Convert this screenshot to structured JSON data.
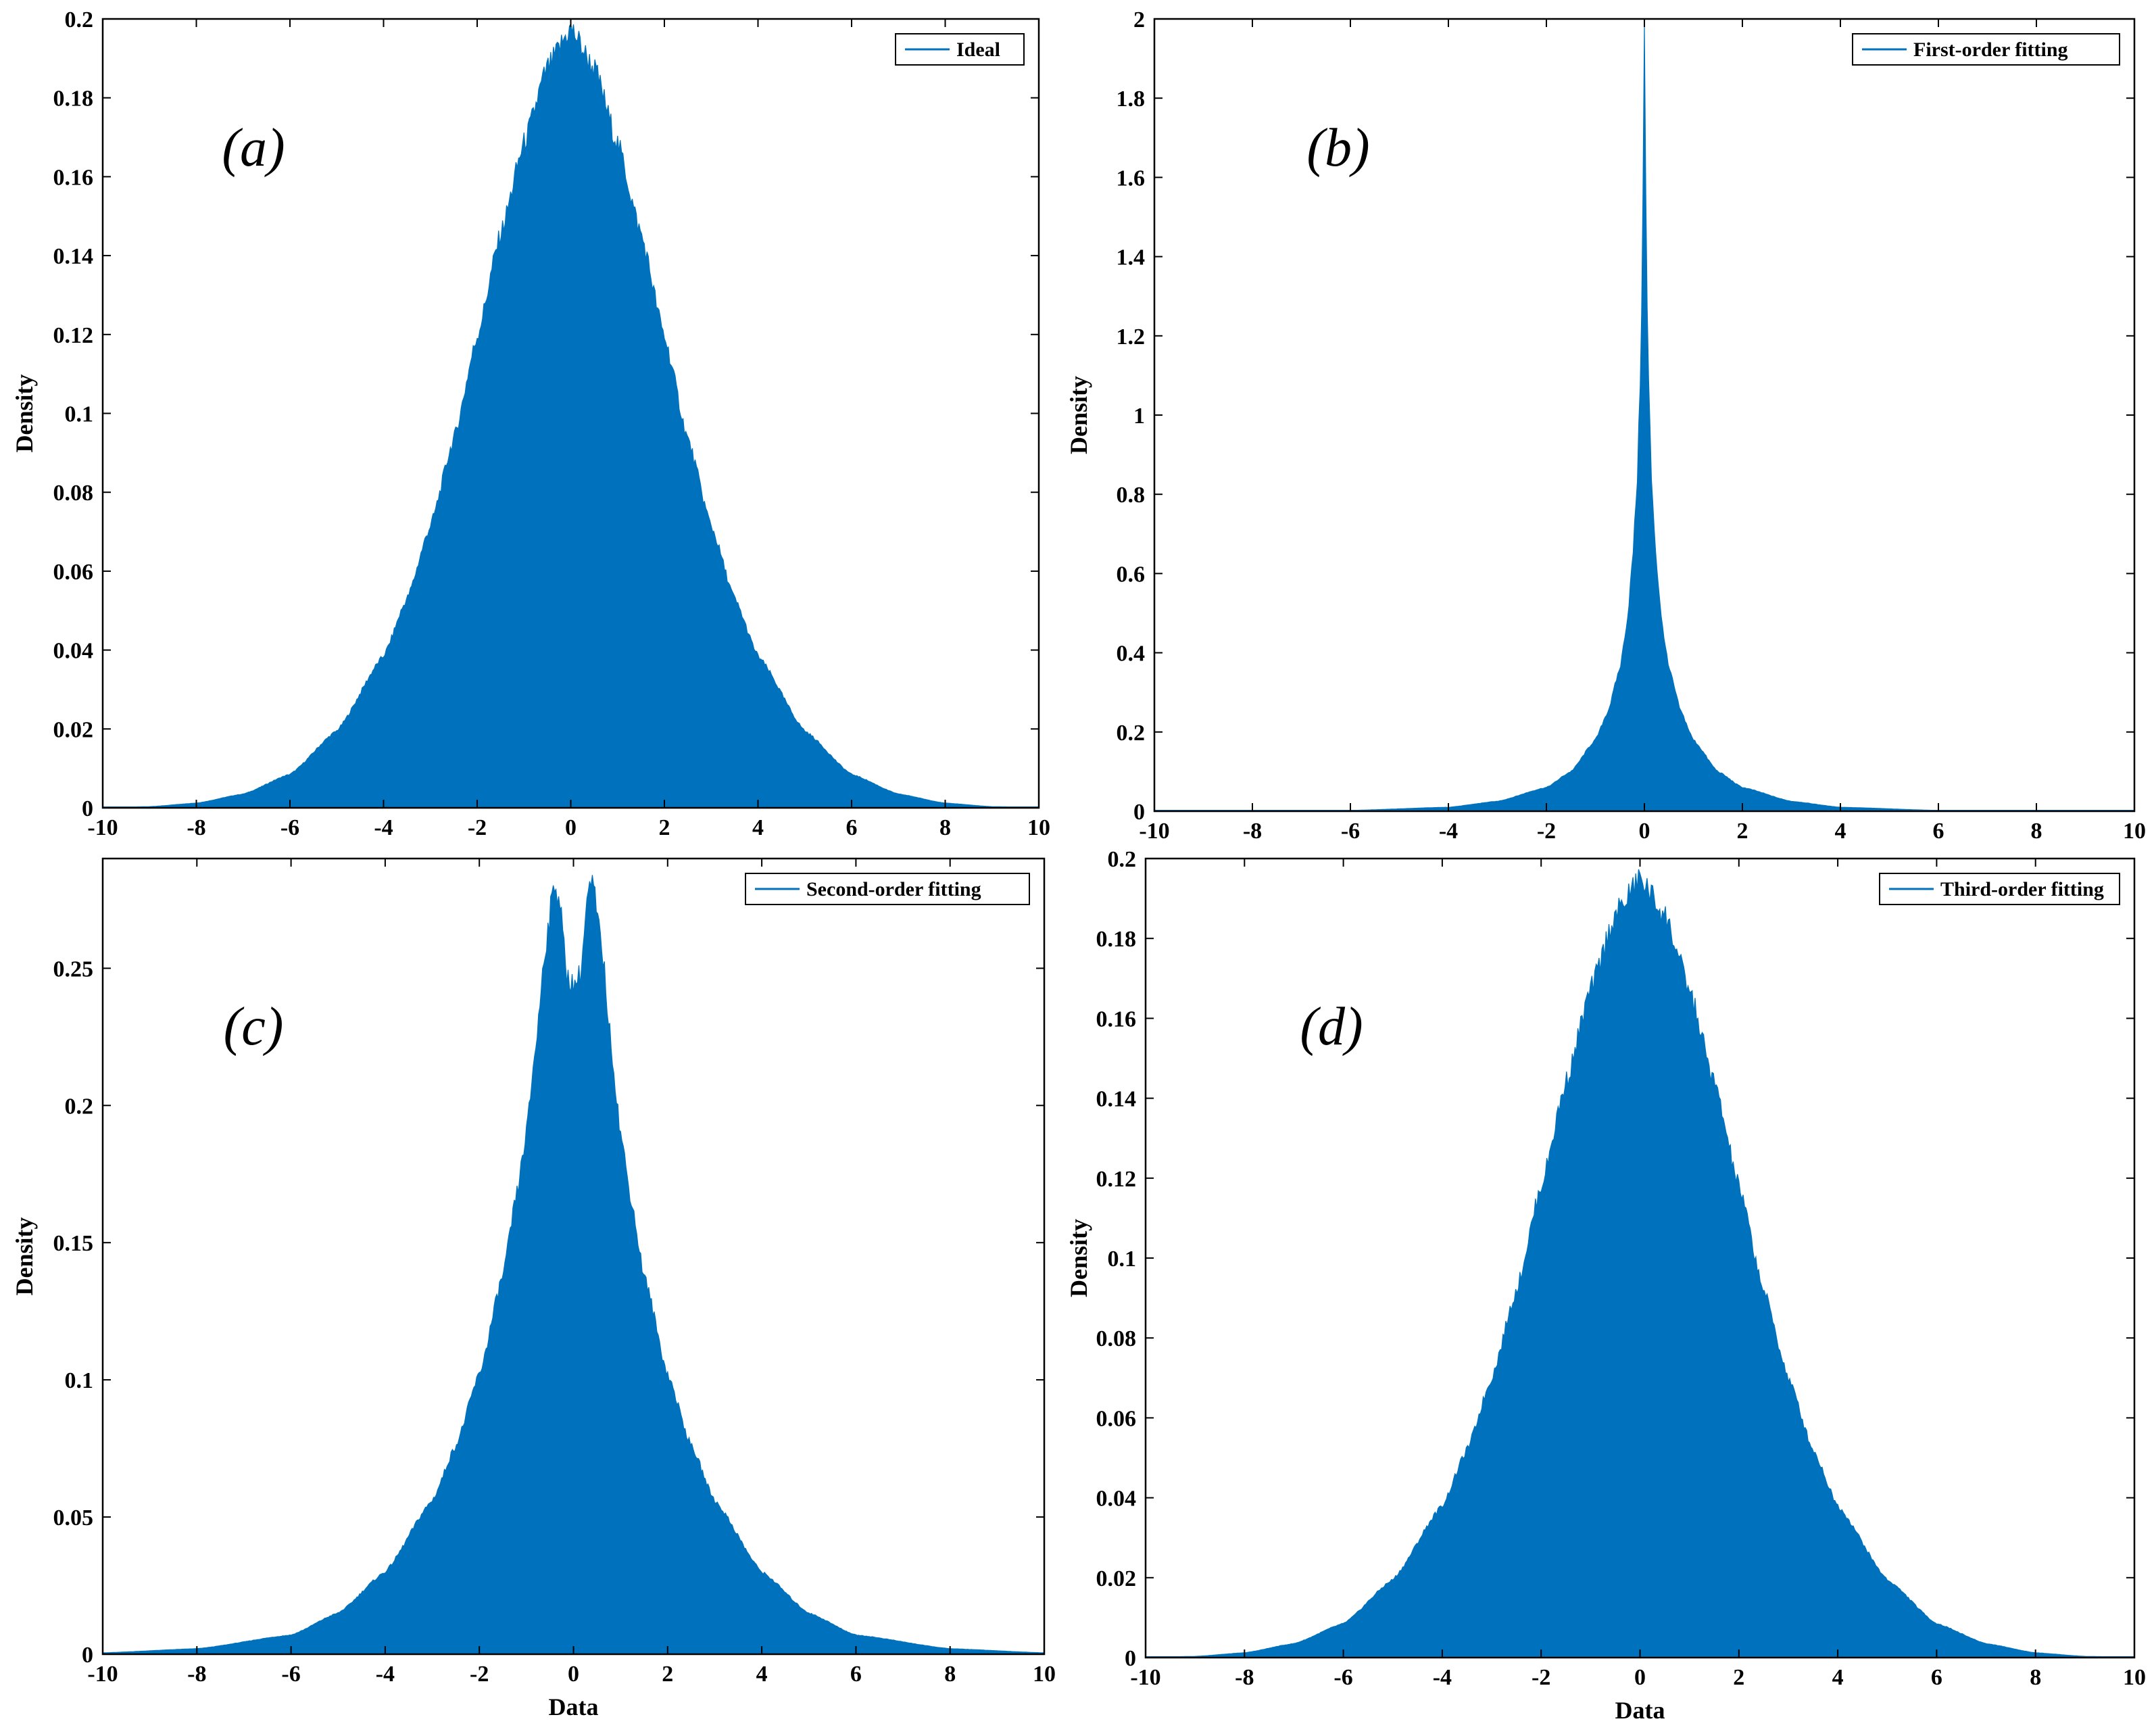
{
  "colors": {
    "series": "#0072BD",
    "axes": "#000000",
    "background": "#ffffff"
  },
  "chart_data": [
    {
      "type": "area",
      "panel_tag": "(a)",
      "title": "",
      "xlabel": "",
      "ylabel": "Density",
      "xlim": [
        -10,
        10
      ],
      "ylim": [
        0,
        0.2
      ],
      "xticks": [
        "-10",
        "-8",
        "-6",
        "-4",
        "-2",
        "0",
        "2",
        "4",
        "6",
        "8",
        "10"
      ],
      "yticks": [
        "0",
        "0.02",
        "0.04",
        "0.06",
        "0.08",
        "0.1",
        "0.12",
        "0.14",
        "0.16",
        "0.18",
        "0.2"
      ],
      "legend": {
        "position": "top-right",
        "entries": [
          "Ideal"
        ]
      },
      "series": [
        {
          "name": "Ideal",
          "x": [
            -10,
            -9,
            -8,
            -7,
            -6,
            -5,
            -4,
            -3.5,
            -3,
            -2.5,
            -2,
            -1.5,
            -1,
            -0.5,
            0,
            0.5,
            1,
            1.5,
            2,
            2.5,
            3,
            3.5,
            4,
            5,
            6,
            7,
            8,
            9,
            10
          ],
          "y": [
            0.0001,
            0.0003,
            0.0012,
            0.0035,
            0.0085,
            0.0195,
            0.0385,
            0.053,
            0.0715,
            0.0935,
            0.1195,
            0.1455,
            0.1685,
            0.1875,
            0.1975,
            0.1875,
            0.1685,
            0.1455,
            0.1195,
            0.0935,
            0.0715,
            0.053,
            0.0385,
            0.0195,
            0.0085,
            0.0035,
            0.0012,
            0.0003,
            0.0001
          ]
        }
      ]
    },
    {
      "type": "area",
      "panel_tag": "(b)",
      "title": "",
      "xlabel": "",
      "ylabel": "Density",
      "xlim": [
        -10,
        10
      ],
      "ylim": [
        0,
        2
      ],
      "xticks": [
        "-10",
        "-8",
        "-6",
        "-4",
        "-2",
        "0",
        "2",
        "4",
        "6",
        "8",
        "10"
      ],
      "yticks": [
        "0",
        "0.2",
        "0.4",
        "0.6",
        "0.8",
        "1",
        "1.2",
        "1.4",
        "1.6",
        "1.8",
        "2"
      ],
      "legend": {
        "position": "top-right",
        "entries": [
          "First-order fitting"
        ]
      },
      "series": [
        {
          "name": "First-order fitting",
          "x": [
            -10,
            -6,
            -4,
            -3,
            -2,
            -1.5,
            -1,
            -0.75,
            -0.5,
            -0.35,
            -0.25,
            -0.15,
            -0.08,
            -0.04,
            0,
            0.04,
            0.08,
            0.15,
            0.25,
            0.35,
            0.5,
            0.75,
            1,
            1.5,
            2,
            3,
            4,
            6,
            10
          ],
          "y": [
            0.0005,
            0.002,
            0.01,
            0.025,
            0.06,
            0.1,
            0.18,
            0.25,
            0.36,
            0.48,
            0.62,
            0.82,
            1.1,
            1.4,
            1.98,
            1.4,
            1.1,
            0.82,
            0.62,
            0.48,
            0.36,
            0.25,
            0.18,
            0.1,
            0.06,
            0.025,
            0.01,
            0.002,
            0.0005
          ]
        }
      ]
    },
    {
      "type": "area",
      "panel_tag": "(c)",
      "title": "",
      "xlabel": "Data",
      "ylabel": "Density",
      "xlim": [
        -10,
        10
      ],
      "ylim": [
        0,
        0.29
      ],
      "xticks": [
        "-10",
        "-8",
        "-6",
        "-4",
        "-2",
        "0",
        "2",
        "4",
        "6",
        "8",
        "10"
      ],
      "yticks": [
        "0",
        "0.05",
        "0.1",
        "0.15",
        "0.2",
        "0.25"
      ],
      "legend": {
        "position": "top-right",
        "entries": [
          "Second-order fitting"
        ]
      },
      "series": [
        {
          "name": "Second-order fitting",
          "x": [
            -10,
            -8,
            -6,
            -5,
            -4,
            -3,
            -2.5,
            -2,
            -1.5,
            -1.2,
            -1,
            -0.8,
            -0.6,
            -0.4,
            -0.3,
            -0.15,
            0,
            0.15,
            0.3,
            0.4,
            0.6,
            0.8,
            1,
            1.2,
            1.5,
            2,
            2.5,
            3,
            4,
            5,
            6,
            8,
            10
          ],
          "y": [
            0.0005,
            0.002,
            0.007,
            0.015,
            0.03,
            0.056,
            0.076,
            0.102,
            0.138,
            0.168,
            0.19,
            0.222,
            0.258,
            0.281,
            0.276,
            0.248,
            0.244,
            0.248,
            0.276,
            0.281,
            0.258,
            0.222,
            0.19,
            0.168,
            0.138,
            0.102,
            0.076,
            0.056,
            0.03,
            0.015,
            0.007,
            0.002,
            0.0005
          ]
        }
      ]
    },
    {
      "type": "area",
      "panel_tag": "(d)",
      "title": "",
      "xlabel": "Data",
      "ylabel": "Density",
      "xlim": [
        -10,
        10
      ],
      "ylim": [
        0,
        0.2
      ],
      "xticks": [
        "-10",
        "-8",
        "-6",
        "-4",
        "-2",
        "0",
        "2",
        "4",
        "6",
        "8",
        "10"
      ],
      "yticks": [
        "0",
        "0.02",
        "0.04",
        "0.06",
        "0.08",
        "0.1",
        "0.12",
        "0.14",
        "0.16",
        "0.18",
        "0.2"
      ],
      "legend": {
        "position": "top-right",
        "entries": [
          "Third-order fitting"
        ]
      },
      "series": [
        {
          "name": "Third-order fitting",
          "x": [
            -10,
            -9,
            -8,
            -7,
            -6,
            -5,
            -4,
            -3.5,
            -3,
            -2.5,
            -2,
            -1.5,
            -1,
            -0.5,
            0,
            0.5,
            1,
            1.5,
            2,
            2.5,
            3,
            3.5,
            4,
            5,
            6,
            7,
            8,
            9,
            10
          ],
          "y": [
            0.0001,
            0.0003,
            0.0012,
            0.0035,
            0.0085,
            0.0195,
            0.038,
            0.052,
            0.07,
            0.092,
            0.118,
            0.144,
            0.167,
            0.186,
            0.195,
            0.186,
            0.167,
            0.144,
            0.118,
            0.092,
            0.07,
            0.052,
            0.038,
            0.0195,
            0.0085,
            0.0035,
            0.0012,
            0.0003,
            0.0001
          ]
        }
      ]
    }
  ]
}
